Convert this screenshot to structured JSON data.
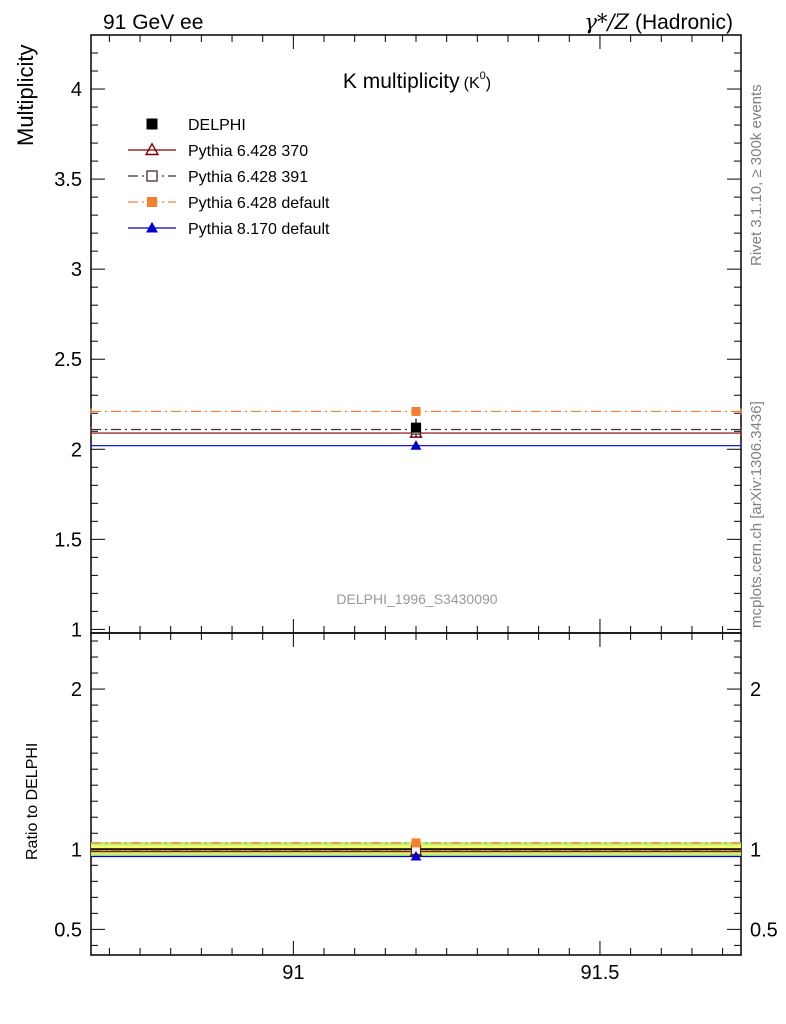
{
  "header": {
    "left": "91 GeV ee",
    "right_prefix": "γ*/Z",
    "right_suffix": "(Hadronic)"
  },
  "side_labels": {
    "rivet": "Rivet 3.1.10, ≥ 300k events",
    "mcplots": "mcplots.cern.ch [arXiv:1306.3436]"
  },
  "chart_data": [
    {
      "type": "line",
      "title_main": "K multiplicity",
      "title_sub": "(K",
      "title_sup": "0",
      "title_close": ")",
      "ylabel": "Multiplicity",
      "analysis_id": "DELPHI_1996_S3430090",
      "xlim": [
        90.67,
        91.73
      ],
      "ylim": [
        0.98,
        4.3
      ],
      "yticks": [
        1,
        1.5,
        2,
        2.5,
        3,
        3.5,
        4
      ],
      "ytick_labels": [
        "1",
        "1.5",
        "2",
        "2.5",
        "3",
        "3.5",
        "4"
      ],
      "x_bin": [
        90.67,
        91.73
      ],
      "x_center": 91.2,
      "legend_position": "top-left",
      "series": [
        {
          "name": "DELPHI",
          "value": 2.12,
          "error": 0.05,
          "color": "#000000",
          "marker": "square-filled",
          "line": "none"
        },
        {
          "name": "Pythia 6.428 370",
          "value": 2.09,
          "color": "#800000",
          "marker": "triangle-open",
          "line": "solid"
        },
        {
          "name": "Pythia 6.428 391",
          "value": 2.11,
          "color": "#4a2f2f",
          "marker": "square-open",
          "line": "dashdot"
        },
        {
          "name": "Pythia 6.428 default",
          "value": 2.21,
          "color": "#f97f2f",
          "marker": "square-filled",
          "line": "dashdot"
        },
        {
          "name": "Pythia 8.170 default",
          "value": 2.02,
          "color": "#0000cc",
          "marker": "triangle-filled",
          "line": "solid"
        }
      ]
    },
    {
      "type": "line",
      "ylabel": "Ratio to DELPHI",
      "xlim": [
        90.67,
        91.73
      ],
      "ylim": [
        0.34,
        2.35
      ],
      "yticks": [
        0.5,
        1,
        2
      ],
      "ytick_labels": [
        "0.5",
        "1",
        "2"
      ],
      "xticks": [
        91,
        91.5
      ],
      "xtick_labels": [
        "91",
        "91.5"
      ],
      "band": {
        "low": 0.955,
        "high": 1.045,
        "inner_low": 0.975,
        "inner_high": 1.025,
        "color": "#b8f07a",
        "inner_color": "#ffff66"
      },
      "series": [
        {
          "name": "DELPHI",
          "value": 1.0,
          "color": "#000000"
        },
        {
          "name": "Pythia 6.428 370",
          "value": 0.985,
          "color": "#800000",
          "marker": "triangle-open"
        },
        {
          "name": "Pythia 6.428 391",
          "value": 0.995,
          "color": "#4a2f2f",
          "marker": "square-open"
        },
        {
          "name": "Pythia 6.428 default",
          "value": 1.04,
          "color": "#f97f2f",
          "marker": "square-filled"
        },
        {
          "name": "Pythia 8.170 default",
          "value": 0.955,
          "color": "#0000cc",
          "marker": "triangle-filled"
        }
      ]
    }
  ]
}
